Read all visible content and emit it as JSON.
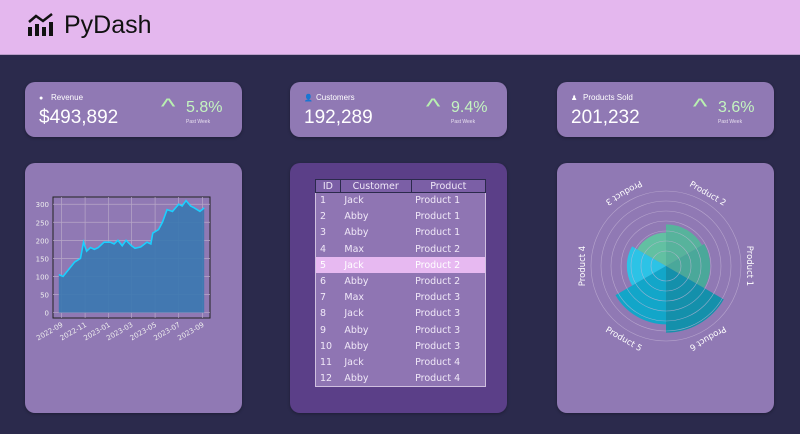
{
  "header": {
    "title": "PyDash",
    "logo_icon": "chart-bars-trend-icon"
  },
  "kpis": [
    {
      "icon": "dollar-circle-icon",
      "label": "Revenue",
      "value": "$493,892",
      "change": "5.8%",
      "period": "Past Week"
    },
    {
      "icon": "user-icon",
      "label": "Customers",
      "value": "192,289",
      "change": "9.4%",
      "period": "Past Week"
    },
    {
      "icon": "box-icon",
      "label": "Products Sold",
      "value": "201,232",
      "change": "3.6%",
      "period": "Past Week"
    }
  ],
  "colors": {
    "header": "#e4b7ee",
    "background": "#2b2a4c",
    "card": "#9079b4",
    "accent_up": "#c4f5c0",
    "line": "#1ad0ff",
    "fill": "#3a78b0"
  },
  "table": {
    "columns": [
      "ID",
      "Customer",
      "Product"
    ],
    "selected_row": 5,
    "rows": [
      [
        "1",
        "Jack",
        "Product 1"
      ],
      [
        "2",
        "Abby",
        "Product 1"
      ],
      [
        "3",
        "Abby",
        "Product 1"
      ],
      [
        "4",
        "Max",
        "Product 2"
      ],
      [
        "5",
        "Jack",
        "Product 2"
      ],
      [
        "6",
        "Abby",
        "Product 2"
      ],
      [
        "7",
        "Max",
        "Product 3"
      ],
      [
        "8",
        "Jack",
        "Product 3"
      ],
      [
        "9",
        "Abby",
        "Product 3"
      ],
      [
        "10",
        "Abby",
        "Product 3"
      ],
      [
        "11",
        "Jack",
        "Product 4"
      ],
      [
        "12",
        "Abby",
        "Product 4"
      ]
    ]
  },
  "chart_data": [
    {
      "type": "area",
      "grid": true,
      "ylim": [
        -15,
        320
      ],
      "yticks": [
        0,
        50,
        100,
        150,
        200,
        250,
        300
      ],
      "xticks": [
        "2022-09",
        "2022-11",
        "2023-01",
        "2023-03",
        "2023-05",
        "2023-07",
        "2023-09"
      ],
      "points": [
        [
          "2022-08-25",
          105
        ],
        [
          "2022-09-05",
          100
        ],
        [
          "2022-09-20",
          120
        ],
        [
          "2022-10-05",
          140
        ],
        [
          "2022-10-20",
          150
        ],
        [
          "2022-10-28",
          195
        ],
        [
          "2022-11-05",
          170
        ],
        [
          "2022-11-15",
          180
        ],
        [
          "2022-11-25",
          175
        ],
        [
          "2022-12-05",
          180
        ],
        [
          "2022-12-20",
          195
        ],
        [
          "2023-01-05",
          195
        ],
        [
          "2023-01-15",
          190
        ],
        [
          "2023-01-25",
          200
        ],
        [
          "2023-02-05",
          185
        ],
        [
          "2023-02-15",
          200
        ],
        [
          "2023-03-01",
          185
        ],
        [
          "2023-03-10",
          178
        ],
        [
          "2023-03-25",
          182
        ],
        [
          "2023-04-10",
          195
        ],
        [
          "2023-04-20",
          190
        ],
        [
          "2023-04-25",
          220
        ],
        [
          "2023-05-10",
          230
        ],
        [
          "2023-05-20",
          250
        ],
        [
          "2023-06-01",
          285
        ],
        [
          "2023-06-15",
          280
        ],
        [
          "2023-07-01",
          300
        ],
        [
          "2023-07-10",
          295
        ],
        [
          "2023-07-20",
          310
        ],
        [
          "2023-08-01",
          295
        ],
        [
          "2023-08-10",
          290
        ],
        [
          "2023-08-25",
          280
        ],
        [
          "2023-09-05",
          290
        ]
      ]
    },
    {
      "type": "polar-bar",
      "categories": [
        "Product 1",
        "Product 2",
        "Product 3",
        "Product 4",
        "Product 5",
        "Product 6"
      ],
      "values": [
        5.3,
        5,
        4,
        4.7,
        7,
        8
      ],
      "rmax": 9,
      "colors": [
        "#4aa89a",
        "#57b39c",
        "#62c0a2",
        "#2cc3e6",
        "#12a6c9",
        "#1490ab"
      ]
    }
  ]
}
